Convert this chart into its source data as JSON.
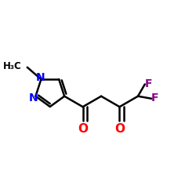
{
  "background": "#ffffff",
  "bond_color": "#000000",
  "bond_lw": 1.8,
  "N_color": "#0000ff",
  "O_color": "#ff0000",
  "F_color": "#8b008b",
  "C_color": "#000000",
  "figsize": [
    2.5,
    2.5
  ],
  "dpi": 100,
  "xlim": [
    0.0,
    1.0
  ],
  "ylim": [
    0.15,
    0.85
  ]
}
